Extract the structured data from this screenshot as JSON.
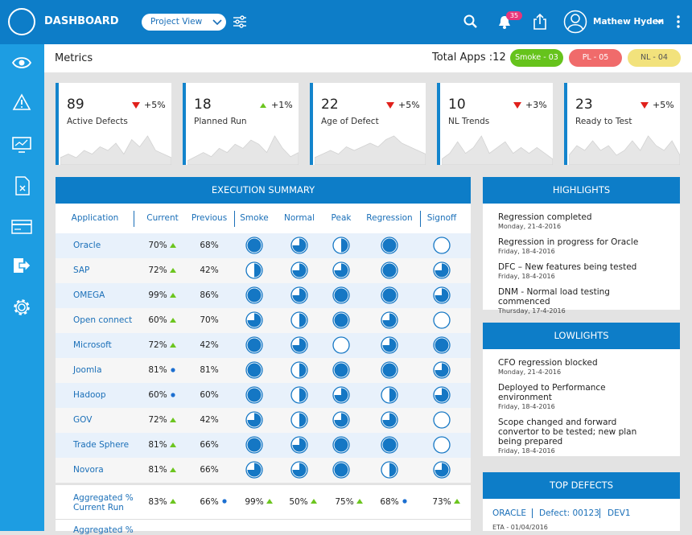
{
  "header": {
    "title": "DASHBOARD",
    "view": "Project View",
    "notifications": "35",
    "user": "Mathew Hyden"
  },
  "metrics": {
    "title": "Metrics",
    "total": "Total Apps :12",
    "badges": [
      {
        "label": "Smoke - 03",
        "color": "#66c31c"
      },
      {
        "label": "PL - 05",
        "color": "#f06b6b"
      },
      {
        "label": "NL - 04",
        "color": "#f2e27c"
      }
    ]
  },
  "kpis": [
    {
      "value": 89,
      "trend": "down",
      "change": "+5%",
      "label": "Active Defects",
      "spark": [
        2,
        3,
        2,
        4,
        3,
        5,
        4,
        6,
        3,
        7,
        5,
        8,
        4,
        3,
        2
      ]
    },
    {
      "value": 18,
      "trend": "up",
      "change": "+1%",
      "label": "Planned Run",
      "spark": [
        1,
        2,
        3,
        2,
        4,
        3,
        5,
        4,
        6,
        5,
        3,
        7,
        4,
        2,
        3
      ]
    },
    {
      "value": 22,
      "trend": "down",
      "change": "+5%",
      "label": "Age of Defect",
      "spark": [
        2,
        3,
        4,
        3,
        5,
        4,
        5,
        6,
        5,
        7,
        8,
        6,
        5,
        4,
        3
      ]
    },
    {
      "value": 10,
      "trend": "down",
      "change": "+3%",
      "label": "NL Trends",
      "spark": [
        1,
        2,
        4,
        2,
        3,
        5,
        2,
        3,
        4,
        2,
        3,
        2,
        3,
        2,
        1
      ]
    },
    {
      "value": 23,
      "trend": "down",
      "change": "+5%",
      "label": "Ready to Test",
      "spark": [
        2,
        4,
        3,
        5,
        3,
        4,
        2,
        3,
        5,
        3,
        6,
        4,
        3,
        5,
        2
      ]
    }
  ],
  "execution": {
    "title": "EXECUTION SUMMARY",
    "columns": [
      "Application",
      "Current",
      "Previous",
      "Smoke",
      "Normal",
      "Peak",
      "Regression",
      "Signoff"
    ],
    "rows": [
      {
        "app": "Oracle",
        "current": "70%",
        "trend": "up",
        "previous": "68%",
        "status": [
          100,
          75,
          50,
          100,
          0
        ]
      },
      {
        "app": "SAP",
        "current": "72%",
        "trend": "up",
        "previous": "42%",
        "status": [
          50,
          75,
          75,
          100,
          75
        ]
      },
      {
        "app": "OMEGA",
        "current": "99%",
        "trend": "up",
        "previous": "86%",
        "status": [
          100,
          75,
          100,
          100,
          75
        ]
      },
      {
        "app": "Open connect",
        "current": "60%",
        "trend": "up",
        "previous": "70%",
        "status": [
          75,
          50,
          100,
          75,
          0
        ]
      },
      {
        "app": "Microsoft",
        "current": "72%",
        "trend": "up",
        "previous": "42%",
        "status": [
          100,
          75,
          0,
          75,
          100
        ]
      },
      {
        "app": "Joomla",
        "current": "81%",
        "trend": "flat",
        "previous": "81%",
        "status": [
          100,
          50,
          100,
          100,
          75
        ]
      },
      {
        "app": "Hadoop",
        "current": "60%",
        "trend": "flat",
        "previous": "60%",
        "status": [
          100,
          50,
          75,
          50,
          75
        ]
      },
      {
        "app": "GOV",
        "current": "72%",
        "trend": "up",
        "previous": "42%",
        "status": [
          75,
          50,
          75,
          75,
          0
        ]
      },
      {
        "app": "Trade Sphere",
        "current": "81%",
        "trend": "up",
        "previous": "66%",
        "status": [
          100,
          75,
          100,
          100,
          0
        ]
      },
      {
        "app": "Novora",
        "current": "81%",
        "trend": "up",
        "previous": "66%",
        "status": [
          75,
          75,
          100,
          50,
          75
        ]
      }
    ],
    "aggregate": {
      "label": [
        "Aggregated %",
        "Current Run"
      ],
      "values": [
        {
          "text": "83%",
          "trend": "up"
        },
        {
          "text": "66%",
          "trend": "flat"
        },
        {
          "text": "99%",
          "trend": "up"
        },
        {
          "text": "50%",
          "trend": "up"
        },
        {
          "text": "75%",
          "trend": "up"
        },
        {
          "text": "68%",
          "trend": "flat"
        },
        {
          "text": "73%",
          "trend": "up"
        }
      ]
    },
    "aggregate2": "Aggregated %"
  },
  "highlights": {
    "title": "HIGHLIGHTS",
    "items": [
      {
        "text": "Regression completed",
        "date": "Monday, 21-4-2016"
      },
      {
        "text": "Regression in progress for Oracle",
        "date": "Friday, 18-4-2016"
      },
      {
        "text": "DFC – New features being tested",
        "date": "Friday, 18-4-2016"
      },
      {
        "text": "DNM - Normal load testing commenced",
        "date": "Thursday, 17-4-2016"
      }
    ]
  },
  "lowlights": {
    "title": "LOWLIGHTS",
    "items": [
      {
        "text": "CFO regression blocked",
        "date": "Monday, 21-4-2016"
      },
      {
        "text": "Deployed to Performance environment",
        "date": "Friday, 18-4-2016"
      },
      {
        "text": "Scope changed and forward convertor to be tested; new plan being prepared",
        "date": "Friday, 18-4-2016"
      }
    ]
  },
  "top_defects": {
    "title": "TOP DEFECTS",
    "items": [
      {
        "app": "ORACLE",
        "defect": "Defect: 00123",
        "owner": "DEV1",
        "eta": "ETA - 01/04/2016"
      }
    ]
  }
}
